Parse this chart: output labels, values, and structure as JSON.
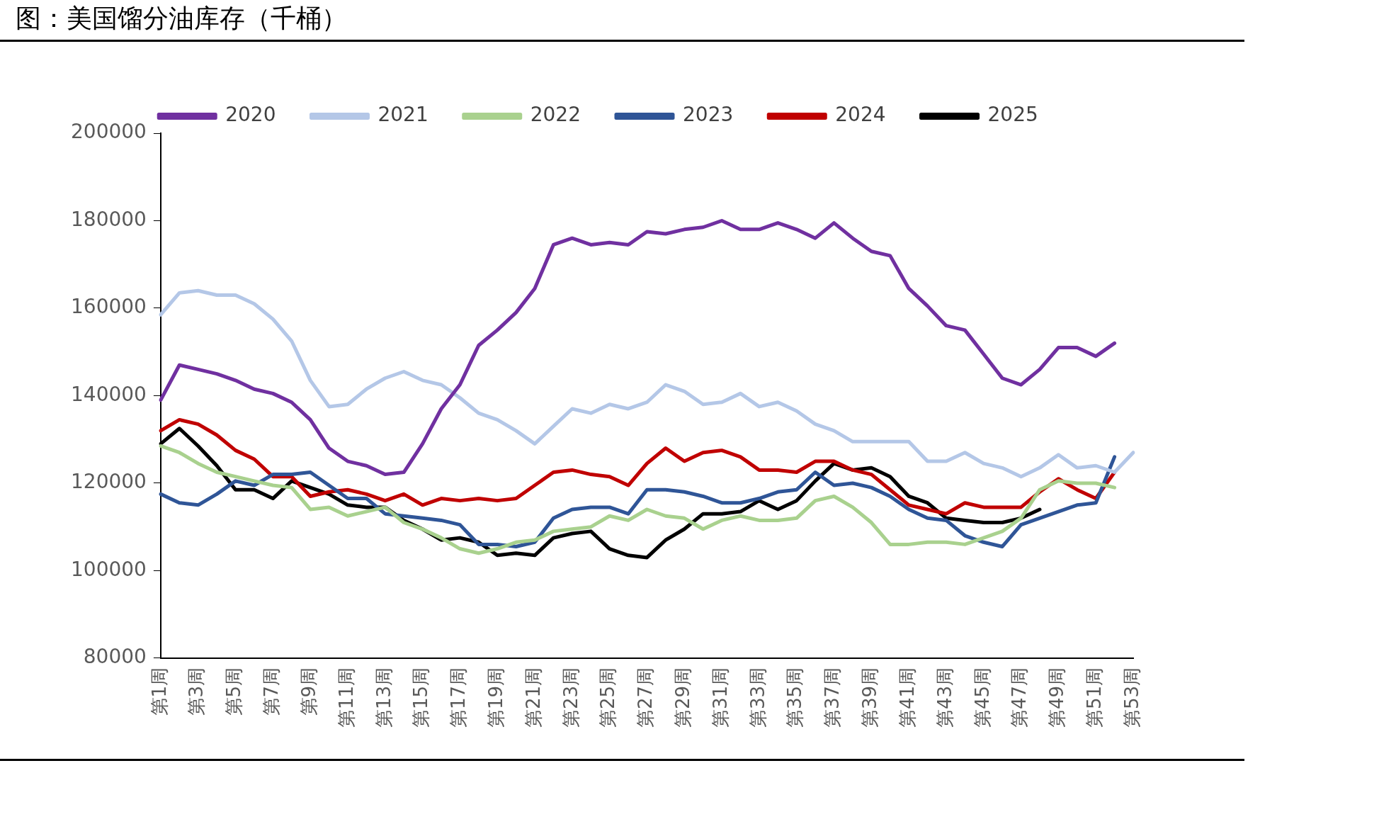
{
  "chart_data": {
    "type": "line",
    "title": "图：美国馏分油库存（千桶）",
    "categories": [
      "第1周",
      null,
      "第3周",
      null,
      "第5周",
      null,
      "第7周",
      null,
      "第9周",
      null,
      "第11周",
      null,
      "第13周",
      null,
      "第15周",
      null,
      "第17周",
      null,
      "第19周",
      null,
      "第21周",
      null,
      "第23周",
      null,
      "第25周",
      null,
      "第27周",
      null,
      "第29周",
      null,
      "第31周",
      null,
      "第33周",
      null,
      "第35周",
      null,
      "第37周",
      null,
      "第39周",
      null,
      "第41周",
      null,
      "第43周",
      null,
      "第45周",
      null,
      "第47周",
      null,
      "第49周",
      null,
      "第51周",
      null,
      "第53周"
    ],
    "series": [
      {
        "name": "2020",
        "color": "#7030a0",
        "values": [
          139000,
          147000,
          146000,
          145000,
          143500,
          141500,
          140500,
          138500,
          134500,
          128000,
          125000,
          124000,
          122000,
          122500,
          129000,
          137000,
          142500,
          151500,
          155000,
          159000,
          164500,
          174500,
          176000,
          174500,
          175000,
          174500,
          177500,
          177000,
          178000,
          178500,
          180000,
          178000,
          178000,
          179500,
          178000,
          176000,
          179500,
          176000,
          173000,
          172000,
          164500,
          160500,
          156000,
          155000,
          149500,
          144000,
          142500,
          146000,
          151000,
          151000,
          149000,
          152000,
          null
        ]
      },
      {
        "name": "2021",
        "color": "#b4c7e7",
        "values": [
          158500,
          163500,
          164000,
          163000,
          163000,
          161000,
          157500,
          152500,
          143500,
          137500,
          138000,
          141500,
          144000,
          145500,
          143500,
          142500,
          139500,
          136000,
          134500,
          132000,
          129000,
          133000,
          137000,
          136000,
          138000,
          137000,
          138500,
          142500,
          141000,
          138000,
          138500,
          140500,
          137500,
          138500,
          136500,
          133500,
          132000,
          129500,
          129500,
          129500,
          129500,
          125000,
          125000,
          127000,
          124500,
          123500,
          121500,
          123500,
          126500,
          123500,
          124000,
          122500,
          127000
        ]
      },
      {
        "name": "2022",
        "color": "#a9d18e",
        "values": [
          128500,
          127000,
          124500,
          122500,
          121500,
          120500,
          119500,
          119000,
          114000,
          114500,
          112500,
          113500,
          114500,
          111000,
          109500,
          107500,
          105000,
          104000,
          105000,
          106500,
          107000,
          109000,
          109500,
          110000,
          112500,
          111500,
          114000,
          112500,
          112000,
          109500,
          111500,
          112500,
          111500,
          111500,
          112000,
          116000,
          117000,
          114500,
          111000,
          106000,
          106000,
          106500,
          106500,
          106000,
          107500,
          109000,
          112000,
          118500,
          120500,
          120000,
          120000,
          119000,
          null
        ]
      },
      {
        "name": "2023",
        "color": "#2f5597",
        "values": [
          117500,
          115500,
          115000,
          117500,
          120500,
          119500,
          122000,
          122000,
          122500,
          119500,
          116500,
          116500,
          113000,
          112500,
          112000,
          111500,
          110500,
          106000,
          106000,
          105500,
          106500,
          112000,
          114000,
          114500,
          114500,
          113000,
          118500,
          118500,
          118000,
          117000,
          115500,
          115500,
          116500,
          118000,
          118500,
          122500,
          119500,
          120000,
          119000,
          117000,
          114000,
          112000,
          111500,
          108000,
          106500,
          105500,
          110500,
          112000,
          113500,
          115000,
          115500,
          126000,
          null
        ]
      },
      {
        "name": "2024",
        "color": "#c00000",
        "values": [
          132000,
          134500,
          133500,
          131000,
          127500,
          125500,
          121500,
          121500,
          117000,
          118000,
          118500,
          117500,
          116000,
          117500,
          115000,
          116500,
          116000,
          116500,
          116000,
          116500,
          119500,
          122500,
          123000,
          122000,
          121500,
          119500,
          124500,
          128000,
          125000,
          127000,
          127500,
          126000,
          123000,
          123000,
          122500,
          125000,
          125000,
          123000,
          122000,
          118500,
          115000,
          114000,
          113000,
          115500,
          114500,
          114500,
          114500,
          118000,
          121000,
          118500,
          116500,
          122500,
          null
        ]
      },
      {
        "name": "2025",
        "color": "#000000",
        "values": [
          129000,
          132500,
          128500,
          124000,
          118500,
          118500,
          116500,
          120500,
          119000,
          117500,
          115000,
          114500,
          114500,
          111500,
          109500,
          107000,
          107500,
          106500,
          103500,
          104000,
          103500,
          107500,
          108500,
          109000,
          105000,
          103500,
          103000,
          107000,
          109500,
          113000,
          113000,
          113500,
          116000,
          114000,
          116000,
          120500,
          124500,
          123000,
          123500,
          121500,
          117000,
          115500,
          112000,
          111500,
          111000,
          111000,
          112000,
          114000,
          null,
          null,
          null,
          null,
          null
        ]
      }
    ],
    "ylim": [
      80000,
      200000
    ],
    "yticks": [
      80000,
      100000,
      120000,
      140000,
      160000,
      180000,
      200000
    ],
    "grid": false,
    "legend": "top",
    "marker": "none",
    "line_style": "solid"
  }
}
